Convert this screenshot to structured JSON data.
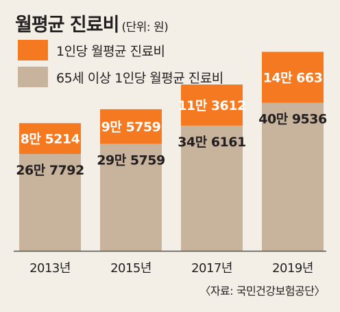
{
  "header": {
    "title": "월평균 진료비",
    "unit": "(단위: 원)"
  },
  "legend": [
    {
      "label": "1인당 월평균 진료비",
      "color": "#f47920"
    },
    {
      "label": "65세 이상 1인당 월평균 진료비",
      "color": "#c8b39c"
    }
  ],
  "chart_data": {
    "type": "bar",
    "categories": [
      "2013년",
      "2015년",
      "2017년",
      "2019년"
    ],
    "series": [
      {
        "name": "1인당 월평균 진료비",
        "values": [
          85214,
          95759,
          113612,
          140663
        ],
        "labels": [
          "8만 5214",
          "9만 5759",
          "11만 3612",
          "14만 663"
        ],
        "color": "#f47920"
      },
      {
        "name": "65세 이상 1인당 월평균 진료비",
        "values": [
          267792,
          295759,
          346161,
          409536
        ],
        "labels": [
          "26만 7792",
          "29만 5759",
          "34만 6161",
          "40만 9536"
        ],
        "color": "#c8b39c"
      }
    ],
    "legend": "top-left",
    "grid": false
  },
  "footer": {
    "source": "〈자료: 국민건강보험공단〉"
  }
}
